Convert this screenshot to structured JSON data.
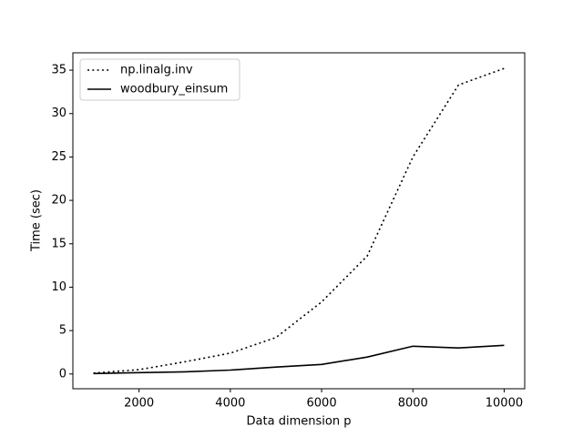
{
  "chart_data": {
    "type": "line",
    "x_label": "Data dimension p",
    "y_label": "Time (sec)",
    "x": [
      1000,
      2000,
      3000,
      4000,
      5000,
      6000,
      7000,
      8000,
      9000,
      10000
    ],
    "series": [
      {
        "name": "np.linalg.inv",
        "color": "#000000",
        "linestyle": "dotted",
        "values": [
          0.1,
          0.5,
          1.4,
          2.4,
          4.2,
          8.3,
          13.6,
          25,
          33.3,
          35.2
        ]
      },
      {
        "name": "woodbury_einsum",
        "color": "#000000",
        "linestyle": "solid",
        "values": [
          0.05,
          0.15,
          0.25,
          0.45,
          0.8,
          1.1,
          1.95,
          3.2,
          3.0,
          3.3
        ]
      }
    ],
    "xlim": [
      550,
      10450
    ],
    "ylim": [
      -1.7,
      37
    ],
    "xticks": [
      2000,
      4000,
      6000,
      8000,
      10000
    ],
    "yticks": [
      0,
      5,
      10,
      15,
      20,
      25,
      30,
      35
    ],
    "legend": "upper left",
    "grid": false
  }
}
